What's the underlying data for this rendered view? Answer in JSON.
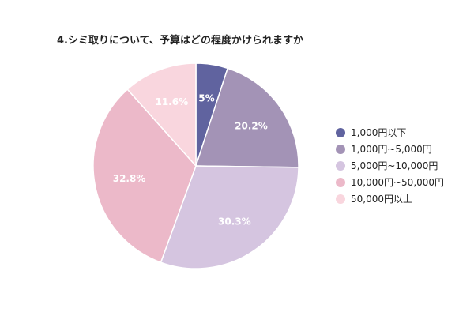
{
  "chart_data": {
    "type": "pie",
    "title": "4.シミ取りについて、予算はどの程度かけられますか",
    "categories": [
      "1,000円以下",
      "1,000円~5,000円",
      "5,000円~10,000円",
      "10,000円~50,000円",
      "50,000円以上"
    ],
    "values": [
      5,
      20.2,
      30.3,
      32.8,
      11.6
    ],
    "value_labels": [
      "5%",
      "20.2%",
      "30.3%",
      "32.8%",
      "11.6%"
    ],
    "colors": [
      "#60639f",
      "#a393b6",
      "#d5c5e0",
      "#ecb9c9",
      "#f9d6de"
    ],
    "legend_position": "right"
  }
}
